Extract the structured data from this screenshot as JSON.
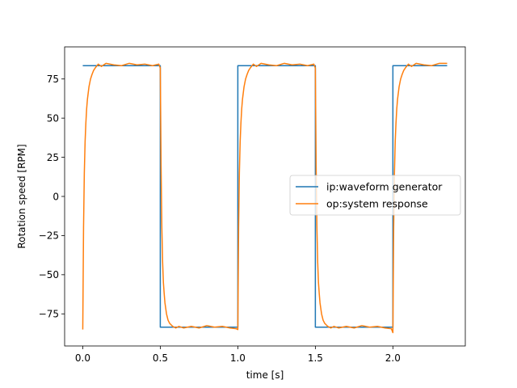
{
  "chart_data": {
    "type": "line",
    "title": "",
    "xlabel": "time [s]",
    "ylabel": "Rotation speed [RPM]",
    "xlim": [
      -0.117,
      2.467
    ],
    "ylim": [
      -95.5,
      95.5
    ],
    "xticks": [
      0.0,
      0.5,
      1.0,
      1.5,
      2.0
    ],
    "xtick_labels": [
      "0.0",
      "0.5",
      "1.0",
      "1.5",
      "2.0"
    ],
    "yticks": [
      -75,
      -50,
      -25,
      0,
      25,
      50,
      75
    ],
    "ytick_labels": [
      "−75",
      "−50",
      "−25",
      "0",
      "25",
      "50",
      "75"
    ],
    "grid": false,
    "legend_position": "center-right",
    "series": [
      {
        "name": "ip:waveform generator",
        "color": "#1f77b4",
        "x": [
          0.0,
          0.5,
          0.5,
          1.0,
          1.0,
          1.5,
          1.5,
          2.0,
          2.0,
          2.35
        ],
        "y": [
          83.5,
          83.5,
          -83.5,
          -83.5,
          83.5,
          83.5,
          -83.5,
          -83.5,
          83.5,
          83.5
        ]
      },
      {
        "name": "op:system response",
        "color": "#ff7f0e",
        "x": [
          0.0,
          0.005,
          0.01,
          0.015,
          0.02,
          0.025,
          0.03,
          0.04,
          0.05,
          0.06,
          0.07,
          0.08,
          0.1,
          0.12,
          0.15,
          0.2,
          0.25,
          0.3,
          0.35,
          0.4,
          0.45,
          0.49,
          0.5,
          0.505,
          0.51,
          0.515,
          0.52,
          0.525,
          0.53,
          0.54,
          0.55,
          0.56,
          0.57,
          0.58,
          0.6,
          0.62,
          0.65,
          0.7,
          0.75,
          0.8,
          0.85,
          0.9,
          0.95,
          0.99,
          1.0,
          1.005,
          1.01,
          1.015,
          1.02,
          1.025,
          1.03,
          1.04,
          1.05,
          1.06,
          1.07,
          1.08,
          1.1,
          1.12,
          1.15,
          1.2,
          1.25,
          1.3,
          1.35,
          1.4,
          1.45,
          1.49,
          1.5,
          1.505,
          1.51,
          1.515,
          1.52,
          1.525,
          1.53,
          1.54,
          1.55,
          1.56,
          1.57,
          1.58,
          1.6,
          1.62,
          1.65,
          1.7,
          1.75,
          1.8,
          1.85,
          1.9,
          1.95,
          1.99,
          2.0,
          2.005,
          2.01,
          2.015,
          2.02,
          2.025,
          2.03,
          2.04,
          2.05,
          2.06,
          2.07,
          2.08,
          2.1,
          2.12,
          2.15,
          2.2,
          2.25,
          2.3,
          2.35
        ],
        "y": [
          -85.0,
          -20.0,
          15.0,
          35.0,
          47.0,
          56.0,
          62.0,
          70.0,
          75.0,
          78.0,
          80.5,
          82.0,
          84.5,
          83.0,
          85.0,
          84.0,
          83.5,
          85.0,
          84.0,
          84.5,
          83.5,
          84.5,
          82.0,
          20.0,
          -20.0,
          -42.0,
          -55.0,
          -62.0,
          -68.0,
          -75.0,
          -79.0,
          -81.0,
          -82.0,
          -83.0,
          -84.0,
          -83.0,
          -84.0,
          -83.0,
          -84.0,
          -82.5,
          -83.5,
          -83.0,
          -84.0,
          -84.5,
          -85.0,
          -20.0,
          15.0,
          35.0,
          47.0,
          56.0,
          62.0,
          70.0,
          75.0,
          78.0,
          80.5,
          82.0,
          84.5,
          83.0,
          85.0,
          84.0,
          83.5,
          85.0,
          84.0,
          84.5,
          83.5,
          84.5,
          82.0,
          20.0,
          -20.0,
          -42.0,
          -55.0,
          -62.0,
          -68.0,
          -75.0,
          -79.0,
          -81.0,
          -82.0,
          -83.0,
          -84.0,
          -83.0,
          -84.0,
          -83.0,
          -84.0,
          -82.5,
          -83.5,
          -83.0,
          -84.0,
          -84.5,
          -87.0,
          -20.0,
          15.0,
          35.0,
          47.0,
          56.0,
          62.0,
          70.0,
          75.0,
          78.0,
          80.5,
          82.0,
          84.5,
          83.0,
          85.0,
          84.0,
          83.5,
          85.0,
          85.0
        ]
      }
    ]
  }
}
